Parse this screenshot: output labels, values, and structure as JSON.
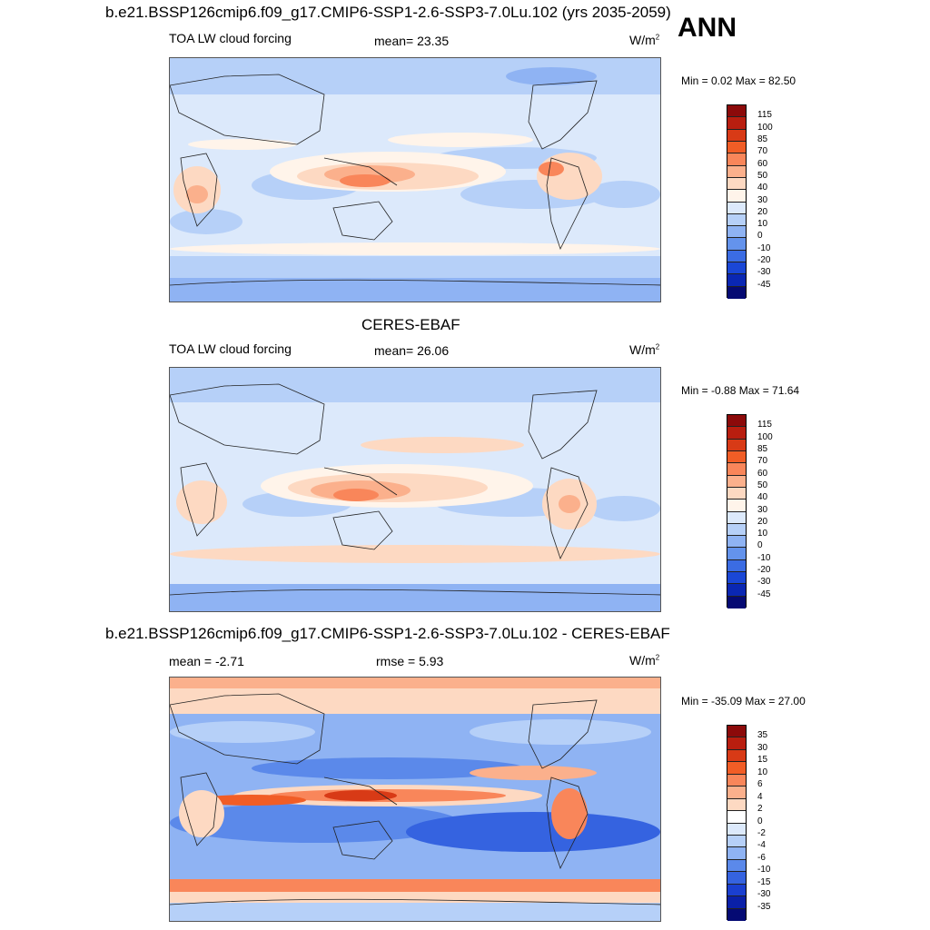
{
  "header": {
    "title": "b.e21.BSSP126cmip6.f09_g17.CMIP6-SSP1-2.6-SSP3-7.0Lu.102 (yrs 2035-2059)",
    "season": "ANN"
  },
  "panels": [
    {
      "title": "",
      "left": "TOA LW cloud forcing",
      "center": "mean=  23.35",
      "units": "W/m",
      "units_sup": "2",
      "minmax": "Min =   0.02 Max =  82.50",
      "labels": [
        "115",
        "100",
        "85",
        "70",
        "60",
        "50",
        "40",
        "30",
        "20",
        "10",
        "0",
        "-10",
        "-20",
        "-30",
        "-45"
      ],
      "colors": [
        "#8c0a0a",
        "#b91e0f",
        "#d83a16",
        "#f15d26",
        "#f9865a",
        "#fbb08c",
        "#fdd9c2",
        "#fff4ea",
        "#dce9fb",
        "#b6d0f8",
        "#8fb3f3",
        "#6493ec",
        "#3b6ce3",
        "#1a47d6",
        "#0a27b3",
        "#050a73"
      ]
    },
    {
      "title": "CERES-EBAF",
      "left": "TOA LW cloud forcing",
      "center": "mean=  26.06",
      "units": "W/m",
      "units_sup": "2",
      "minmax": "Min =  -0.88 Max =  71.64",
      "labels": [
        "115",
        "100",
        "85",
        "70",
        "60",
        "50",
        "40",
        "30",
        "20",
        "10",
        "0",
        "-10",
        "-20",
        "-30",
        "-45"
      ],
      "colors": [
        "#8c0a0a",
        "#b91e0f",
        "#d83a16",
        "#f15d26",
        "#f9865a",
        "#fbb08c",
        "#fdd9c2",
        "#fff4ea",
        "#dce9fb",
        "#b6d0f8",
        "#8fb3f3",
        "#6493ec",
        "#3b6ce3",
        "#1a47d6",
        "#0a27b3",
        "#050a73"
      ]
    },
    {
      "title": "b.e21.BSSP126cmip6.f09_g17.CMIP6-SSP1-2.6-SSP3-7.0Lu.102 - CERES-EBAF",
      "left": "mean =  -2.71",
      "center": "rmse =   5.93",
      "units": "W/m",
      "units_sup": "2",
      "minmax": "Min = -35.09 Max =  27.00",
      "labels": [
        "35",
        "30",
        "15",
        "10",
        "6",
        "4",
        "2",
        "0",
        "-2",
        "-4",
        "-6",
        "-10",
        "-15",
        "-30",
        "-35"
      ],
      "colors": [
        "#8c0a0a",
        "#b91e0f",
        "#d83a16",
        "#f15d26",
        "#f9865a",
        "#fbb08c",
        "#fdd9c2",
        "#ffffff",
        "#dce9fb",
        "#b6d0f8",
        "#8fb3f3",
        "#5b89ea",
        "#3563e0",
        "#1a3fd0",
        "#0a20a8",
        "#050a73"
      ]
    }
  ]
}
